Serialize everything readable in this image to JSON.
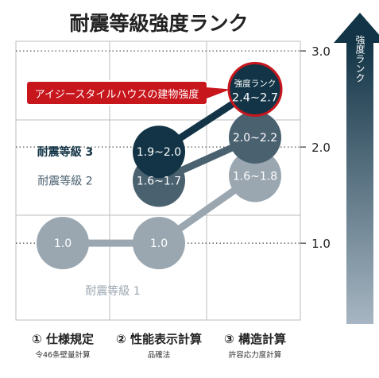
{
  "chart_data": {
    "type": "scatter",
    "title": "耐震等級強度ランク",
    "y_axis": {
      "ticks": [
        "1.0",
        "2.0",
        "3.0"
      ],
      "label": "強度ランク",
      "ylim": [
        0.2,
        3.1
      ]
    },
    "categories": [
      {
        "label": "① 仕様規定",
        "sublabel": "令46条壁量計算"
      },
      {
        "label": "② 性能表示計算",
        "sublabel": "品確法"
      },
      {
        "label": "③ 構造計算",
        "sublabel": "許容応力度計算"
      }
    ],
    "series": [
      {
        "name": "耐震等級 1",
        "color": "#9aa7b1",
        "points": [
          {
            "x": 0,
            "y": 1.0,
            "label": "1.0"
          },
          {
            "x": 1,
            "y": 1.0,
            "label": "1.0"
          },
          {
            "x": 2,
            "y": 1.7,
            "label": "1.6~1.8"
          }
        ]
      },
      {
        "name": "耐震等級 2",
        "color": "#4a6170",
        "points": [
          {
            "x": 1,
            "y": 1.65,
            "label": "1.6~1.7"
          },
          {
            "x": 2,
            "y": 2.1,
            "label": "2.0~2.2"
          }
        ]
      },
      {
        "name": "耐震等級 3",
        "color": "#123446",
        "points": [
          {
            "x": 1,
            "y": 1.95,
            "label": "1.9~2.0"
          },
          {
            "x": 2,
            "y": 2.6,
            "label": "強度ランク",
            "label2": "2.4~2.7",
            "highlight": true
          }
        ]
      }
    ],
    "callout": "アイジースタイルハウスの建物強度",
    "colors": {
      "title": "#222222",
      "callout_fill": "#c8161d",
      "highlight_ring": "#c8161d",
      "arrow_top": "#123446",
      "arrow_bottom": "#a7b6c2",
      "grid": "#bdbdbd",
      "dotted": "#555555"
    }
  }
}
